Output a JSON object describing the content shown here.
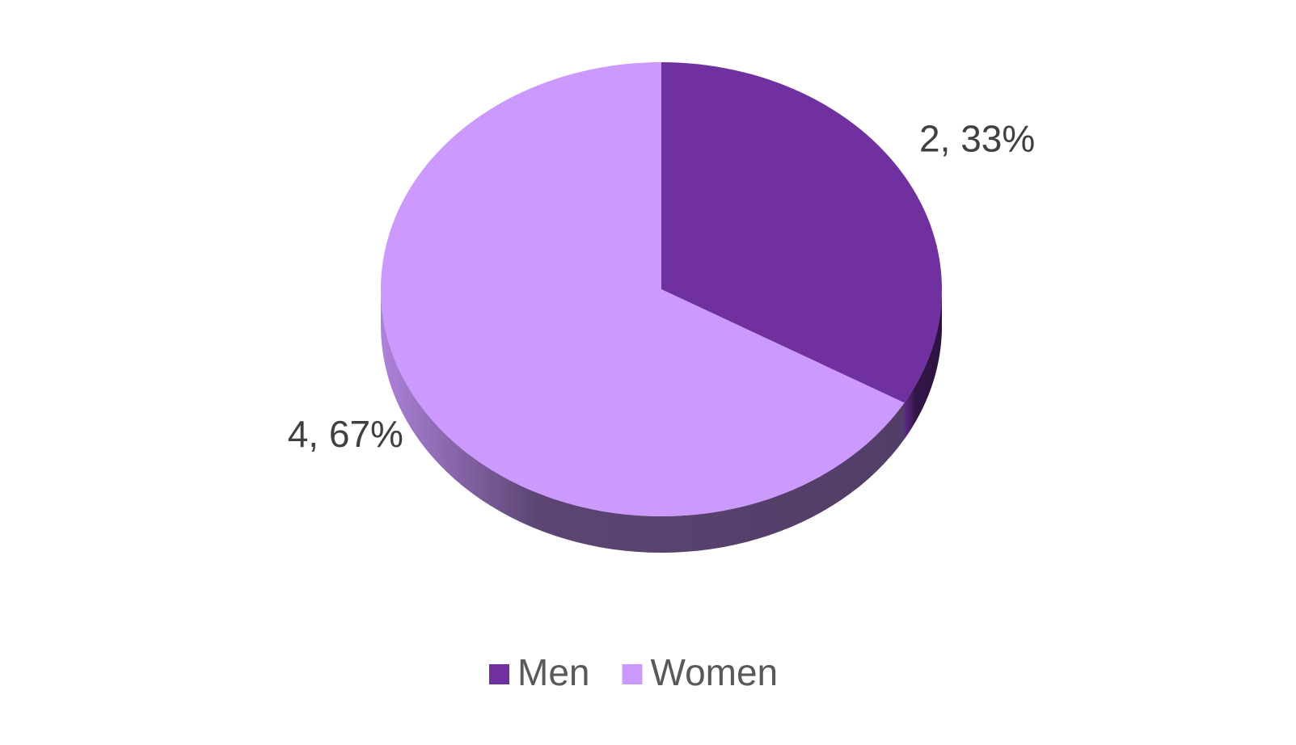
{
  "chart_data": {
    "type": "pie",
    "categories": [
      "Men",
      "Women"
    ],
    "values": [
      2,
      4
    ],
    "value_labels": [
      "2, 33%",
      "4, 67%"
    ],
    "colors": [
      "#7030a0",
      "#cc99ff"
    ],
    "legend": "bottom"
  }
}
